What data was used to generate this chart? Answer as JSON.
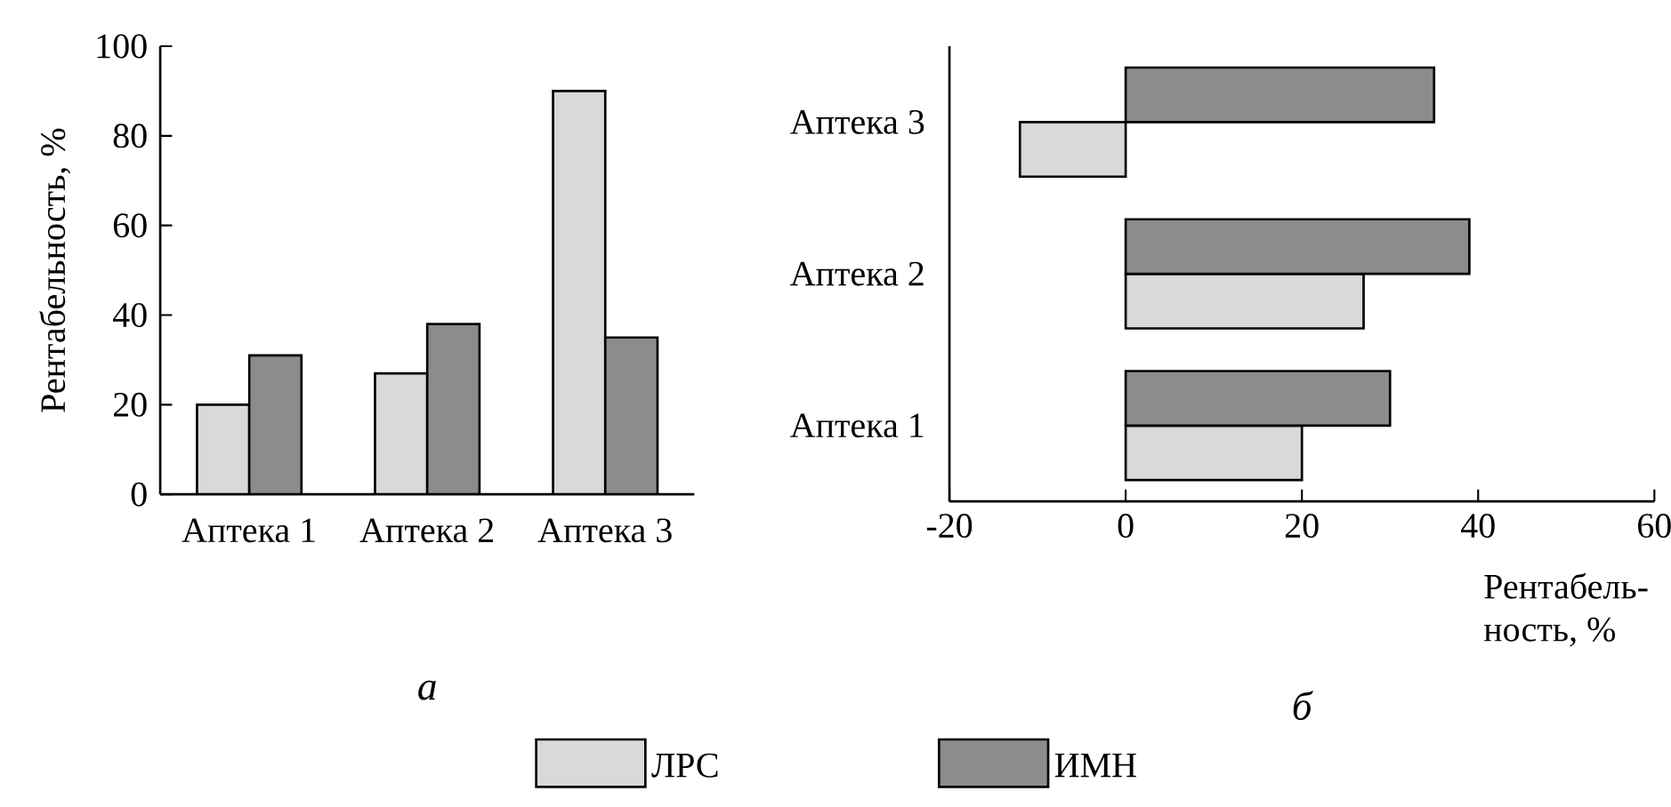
{
  "chart_data": [
    {
      "type": "bar",
      "title": "а",
      "ylabel": "Рентабельность, %",
      "categories": [
        "Аптека 1",
        "Аптека 2",
        "Аптека 3"
      ],
      "ylim": [
        0,
        100
      ],
      "yticks": [
        0,
        20,
        40,
        60,
        80,
        100
      ],
      "legend": "bottom",
      "series": [
        {
          "name": "ЛРС",
          "color": "#d9d9d9",
          "values": [
            20,
            27,
            90
          ]
        },
        {
          "name": "ИМН",
          "color": "#8c8c8c",
          "values": [
            31,
            38,
            35
          ]
        }
      ]
    },
    {
      "type": "bar",
      "orientation": "horizontal",
      "title": "б",
      "xlabel": "Рентабель- ность, %",
      "categories": [
        "Аптека 3",
        "Аптека 2",
        "Аптека 1"
      ],
      "xlim": [
        -20,
        60
      ],
      "xticks": [
        -20,
        0,
        20,
        40,
        60
      ],
      "series": [
        {
          "color": "#d9d9d9",
          "values": [
            -12,
            27,
            20
          ]
        },
        {
          "color": "#8c8c8c",
          "values": [
            35,
            39,
            30
          ]
        }
      ]
    }
  ]
}
